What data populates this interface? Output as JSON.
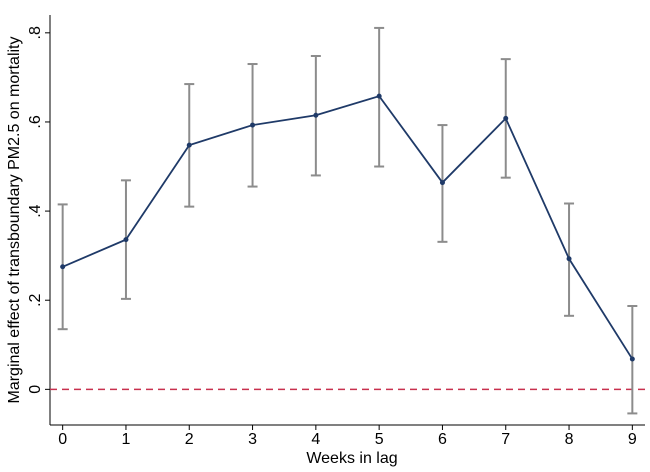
{
  "chart_data": {
    "type": "line",
    "x_label": "Weeks in lag",
    "y_label": "Marginal effect of transboundary PM2.5 on mortality",
    "x": [
      0,
      1,
      2,
      3,
      4,
      5,
      6,
      7,
      8,
      9
    ],
    "series": [
      {
        "color": "#1f3a68",
        "error_color": "#8c8c8c",
        "values": [
          0.275,
          0.336,
          0.548,
          0.593,
          0.615,
          0.658,
          0.464,
          0.608,
          0.293,
          0.068
        ],
        "lower": [
          0.135,
          0.203,
          0.41,
          0.455,
          0.48,
          0.5,
          0.331,
          0.475,
          0.165,
          -0.054
        ],
        "upper": [
          0.415,
          0.469,
          0.685,
          0.73,
          0.748,
          0.811,
          0.593,
          0.741,
          0.417,
          0.187
        ]
      }
    ],
    "reference_line": {
      "value": 0,
      "color": "#c8304e"
    },
    "xlim": [
      -0.2,
      9.2
    ],
    "xticks": [
      0,
      1,
      2,
      3,
      4,
      5,
      6,
      7,
      8,
      9
    ],
    "ylim": [
      -0.08,
      0.84
    ],
    "yticks": [
      0,
      {
        "value": 0.2,
        "label": ".2"
      },
      {
        "value": 0.4,
        "label": ".4"
      },
      {
        "value": 0.6,
        "label": ".6"
      },
      {
        "value": 0.8,
        "label": ".8"
      }
    ]
  }
}
